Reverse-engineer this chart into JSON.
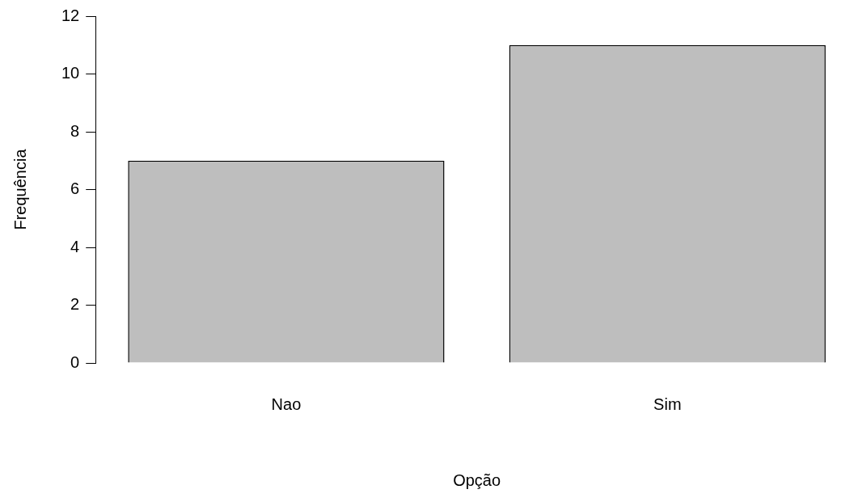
{
  "chart_data": {
    "type": "bar",
    "xlabel": "Opção",
    "ylabel": "Frequência",
    "categories": [
      "Nao",
      "Sim"
    ],
    "values": [
      7,
      11
    ],
    "color": "#bebebe",
    "ylim": [
      0,
      12
    ],
    "yticks": [
      0,
      2,
      4,
      6,
      8,
      10,
      12
    ],
    "grid": false,
    "legend": false
  }
}
